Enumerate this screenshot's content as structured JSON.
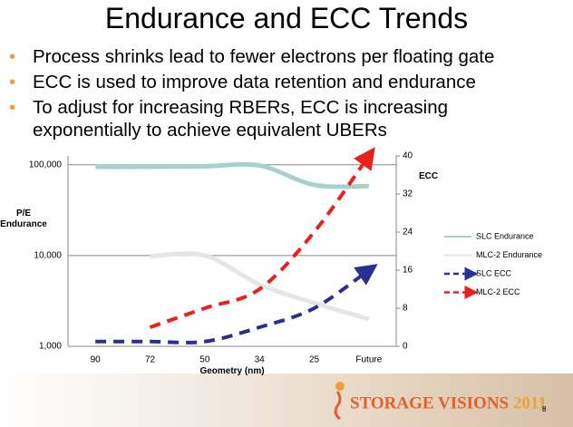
{
  "header": {
    "title": "Endurance and ECC Trends"
  },
  "bullets": [
    "Process shrinks lead to fewer electrons per floating gate",
    "ECC is used to improve data retention and endurance",
    "To adjust for increasing RBERs, ECC is increasing exponentially to achieve equivalent UBERs"
  ],
  "chart_data": {
    "type": "line",
    "xlabel": "Geometry (nm)",
    "ylabel": "P/E Endurance",
    "y2label": "ECC",
    "categories": [
      "90",
      "72",
      "50",
      "34",
      "25",
      "Future"
    ],
    "ylog": true,
    "ylim": [
      1000,
      125000
    ],
    "yticks": [
      {
        "value": 1000,
        "label": "1,000"
      },
      {
        "value": 10000,
        "label": "10,000"
      },
      {
        "value": 100000,
        "label": "100,000"
      }
    ],
    "y2lim": [
      0,
      40
    ],
    "y2ticks": [
      0,
      8,
      16,
      24,
      32,
      40
    ],
    "grid": true,
    "legend": "right",
    "series": [
      {
        "name": "SLC Endurance",
        "color": "#a9d0cf",
        "style": "solid",
        "values": [
          95000,
          95000,
          96000,
          98000,
          60000,
          58000
        ]
      },
      {
        "name": "MLC-2 Endurance",
        "color": "#e6e6e6",
        "style": "solid",
        "values": [
          null,
          9800,
          10000,
          4800,
          3000,
          2000
        ]
      },
      {
        "name": "SLC ECC",
        "color": "#2b2f8f",
        "style": "dashed",
        "axis": "y2",
        "values": [
          1,
          1,
          1,
          4,
          8,
          16
        ]
      },
      {
        "name": "MLC-2 ECC",
        "color": "#e8211d",
        "style": "dashed",
        "axis": "y2",
        "values": [
          null,
          4,
          8,
          12,
          24,
          40
        ]
      }
    ]
  },
  "footer": {
    "brand": "STORAGE VISIONS",
    "year": "2011",
    "page": "8"
  }
}
